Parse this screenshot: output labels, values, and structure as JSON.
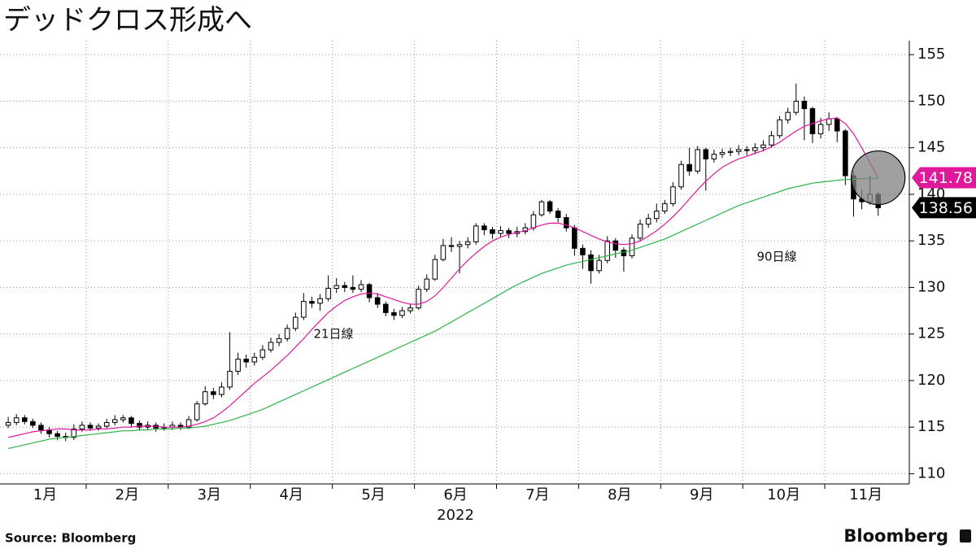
{
  "chart_data": {
    "type": "candlestick",
    "title": "デッドクロス形成へ",
    "xlim": [
      -1,
      109
    ],
    "xticks": [
      {
        "value": 4.5,
        "label": "1月"
      },
      {
        "value": 14.5,
        "label": "2月"
      },
      {
        "value": 24.5,
        "label": "3月"
      },
      {
        "value": 34.5,
        "label": "4月"
      },
      {
        "value": 44.5,
        "label": "5月"
      },
      {
        "value": 54.5,
        "label": "6月"
      },
      {
        "value": 64.5,
        "label": "7月"
      },
      {
        "value": 74.5,
        "label": "8月"
      },
      {
        "value": 84.5,
        "label": "9月"
      },
      {
        "value": 94.5,
        "label": "10月"
      },
      {
        "value": 104.5,
        "label": "11月"
      }
    ],
    "x_label": "2022",
    "ylim": [
      108.9,
      156.5
    ],
    "yticks": [
      110,
      115,
      120,
      125,
      130,
      135,
      140,
      145,
      150,
      155
    ],
    "grid": true,
    "up_color": "#ffffff",
    "down_color": "#000000",
    "open": [
      115.2,
      115.5,
      116.0,
      115.6,
      115.2,
      114.7,
      114.3,
      114.0,
      113.9,
      114.8,
      115.2,
      114.9,
      115.1,
      115.5,
      115.8,
      116.0,
      115.4,
      115.0,
      115.2,
      114.9,
      115.0,
      115.2,
      115.0,
      115.8,
      117.5,
      118.8,
      118.5,
      119.3,
      121.0,
      122.3,
      122.0,
      122.5,
      123.3,
      124.1,
      124.5,
      125.6,
      126.8,
      128.5,
      128.3,
      128.8,
      129.9,
      130.2,
      130.0,
      129.8,
      130.3,
      128.9,
      128.2,
      127.3,
      127.0,
      127.5,
      127.8,
      129.8,
      130.9,
      133.0,
      134.5,
      134.4,
      134.6,
      134.9,
      136.6,
      136.2,
      135.8,
      136.1,
      135.8,
      136.0,
      136.4,
      137.8,
      139.2,
      138.2,
      137.5,
      136.4,
      134.2,
      133.5,
      131.8,
      132.9,
      135.0,
      134.0,
      133.4,
      135.3,
      136.8,
      137.4,
      138.2,
      139.0,
      140.8,
      143.2,
      142.5,
      144.8,
      143.8,
      144.3,
      144.5,
      144.6,
      144.8,
      144.7,
      145.0,
      145.3,
      146.3,
      148.0,
      148.8,
      150.0,
      149.2,
      146.5,
      147.5,
      148.1,
      146.8,
      142.0,
      139.5,
      139.2,
      140.0
    ],
    "high": [
      116.1,
      116.4,
      116.3,
      115.9,
      115.5,
      115.0,
      114.6,
      114.4,
      115.3,
      115.6,
      115.5,
      115.4,
      115.9,
      116.3,
      116.3,
      116.2,
      115.7,
      115.6,
      115.5,
      115.4,
      115.6,
      115.5,
      116.2,
      117.8,
      119.4,
      119.2,
      119.8,
      125.2,
      123.0,
      122.8,
      123.0,
      123.8,
      124.6,
      125.0,
      126.0,
      127.3,
      129.4,
      129.0,
      129.3,
      131.3,
      131.0,
      130.6,
      131.3,
      130.8,
      130.5,
      129.4,
      128.5,
      127.7,
      127.9,
      128.2,
      130.2,
      131.4,
      133.5,
      135.2,
      135.4,
      135.0,
      135.4,
      136.9,
      136.9,
      136.5,
      136.6,
      136.4,
      136.5,
      136.9,
      138.2,
      139.4,
      139.4,
      138.5,
      137.9,
      136.7,
      134.6,
      134.0,
      133.5,
      135.5,
      135.3,
      134.3,
      135.7,
      137.3,
      137.9,
      139.0,
      139.4,
      141.3,
      143.6,
      145.0,
      145.2,
      145.0,
      144.8,
      144.9,
      145.0,
      145.3,
      145.2,
      145.5,
      145.8,
      146.8,
      148.4,
      149.3,
      151.9,
      150.5,
      149.4,
      148.2,
      148.8,
      148.3,
      147.0,
      142.5,
      140.5,
      142.0,
      140.3
    ],
    "low": [
      114.9,
      115.2,
      115.3,
      114.9,
      114.3,
      113.9,
      113.6,
      113.5,
      113.6,
      114.5,
      114.6,
      114.6,
      114.9,
      115.2,
      115.5,
      115.0,
      114.6,
      114.7,
      114.5,
      114.6,
      114.7,
      114.7,
      114.8,
      115.6,
      117.3,
      118.0,
      118.2,
      119.0,
      120.6,
      121.4,
      121.6,
      122.2,
      123.0,
      123.7,
      124.2,
      125.3,
      126.5,
      127.8,
      127.5,
      128.5,
      129.4,
      129.5,
      129.4,
      129.5,
      128.4,
      127.8,
      126.9,
      126.5,
      126.7,
      127.2,
      127.6,
      129.5,
      130.7,
      132.8,
      133.8,
      131.5,
      134.2,
      134.6,
      135.6,
      135.2,
      135.4,
      135.3,
      135.4,
      135.7,
      136.1,
      137.6,
      137.9,
      137.0,
      136.0,
      133.4,
      132.0,
      130.4,
      131.5,
      132.6,
      133.2,
      131.7,
      133.1,
      135.0,
      136.4,
      137.0,
      137.9,
      138.7,
      140.5,
      142.0,
      142.2,
      140.4,
      143.4,
      143.9,
      144.1,
      144.2,
      144.2,
      144.3,
      144.6,
      145.0,
      146.0,
      147.6,
      148.5,
      145.8,
      145.5,
      146.0,
      146.8,
      145.6,
      141.0,
      137.6,
      138.4,
      138.9,
      137.7
    ],
    "close": [
      115.5,
      116.0,
      115.6,
      115.2,
      114.7,
      114.3,
      114.0,
      113.9,
      114.8,
      115.2,
      114.9,
      115.1,
      115.5,
      115.8,
      116.0,
      115.4,
      115.0,
      115.2,
      114.9,
      115.0,
      115.2,
      115.0,
      115.8,
      117.5,
      118.8,
      118.5,
      119.3,
      121.0,
      122.3,
      122.0,
      122.5,
      123.3,
      124.1,
      124.5,
      125.6,
      126.8,
      128.5,
      128.3,
      128.8,
      129.9,
      130.2,
      130.0,
      129.8,
      130.3,
      128.9,
      128.2,
      127.3,
      127.0,
      127.5,
      127.8,
      129.8,
      130.9,
      133.0,
      134.5,
      134.4,
      134.6,
      134.9,
      136.6,
      136.2,
      135.8,
      136.1,
      135.8,
      136.0,
      136.4,
      137.8,
      139.2,
      138.2,
      137.5,
      136.4,
      134.2,
      133.5,
      131.8,
      132.9,
      135.0,
      134.0,
      133.4,
      135.3,
      136.8,
      137.4,
      138.2,
      139.0,
      140.8,
      143.2,
      142.5,
      144.8,
      143.8,
      144.3,
      144.5,
      144.6,
      144.8,
      144.7,
      145.0,
      145.3,
      146.3,
      148.0,
      148.8,
      150.0,
      149.2,
      146.5,
      147.5,
      148.1,
      146.8,
      142.0,
      139.5,
      139.2,
      140.0,
      138.56
    ],
    "series": [
      {
        "name": "21日線",
        "color": "#e0189a",
        "values": [
          113.9,
          114.1,
          114.3,
          114.5,
          114.6,
          114.7,
          114.8,
          114.8,
          114.7,
          114.7,
          114.7,
          114.8,
          114.8,
          114.9,
          115.0,
          115.0,
          115.1,
          115.1,
          115.1,
          115.0,
          115.0,
          115.0,
          115.1,
          115.3,
          115.6,
          116.0,
          116.6,
          117.3,
          118.1,
          118.9,
          119.7,
          120.4,
          121.1,
          121.9,
          122.7,
          123.6,
          124.5,
          125.5,
          126.4,
          127.3,
          128.0,
          128.6,
          129.0,
          129.3,
          129.4,
          129.3,
          129.0,
          128.7,
          128.4,
          128.2,
          128.2,
          128.5,
          129.1,
          130.0,
          131.0,
          132.0,
          132.9,
          133.7,
          134.4,
          135.0,
          135.4,
          135.7,
          135.9,
          136.1,
          136.4,
          136.7,
          136.9,
          136.9,
          136.7,
          136.4,
          136.0,
          135.6,
          135.2,
          134.9,
          134.7,
          134.6,
          134.7,
          135.0,
          135.5,
          136.1,
          136.8,
          137.6,
          138.5,
          139.5,
          140.5,
          141.4,
          142.2,
          142.9,
          143.4,
          143.8,
          144.1,
          144.4,
          144.7,
          145.1,
          145.6,
          146.2,
          146.8,
          147.3,
          147.6,
          147.9,
          148.1,
          148.2,
          147.6,
          146.5,
          145.0,
          143.4,
          141.78
        ]
      },
      {
        "name": "90日線",
        "color": "#2db34a",
        "values": [
          112.7,
          112.9,
          113.1,
          113.3,
          113.5,
          113.7,
          113.8,
          113.9,
          114.0,
          114.1,
          114.2,
          114.3,
          114.4,
          114.5,
          114.6,
          114.6,
          114.7,
          114.7,
          114.8,
          114.8,
          114.8,
          114.9,
          114.9,
          115.0,
          115.1,
          115.3,
          115.5,
          115.7,
          116.0,
          116.3,
          116.6,
          116.9,
          117.3,
          117.7,
          118.1,
          118.5,
          118.9,
          119.3,
          119.7,
          120.1,
          120.5,
          120.9,
          121.3,
          121.7,
          122.1,
          122.5,
          122.9,
          123.3,
          123.7,
          124.1,
          124.5,
          124.9,
          125.3,
          125.8,
          126.3,
          126.8,
          127.3,
          127.8,
          128.3,
          128.8,
          129.3,
          129.8,
          130.3,
          130.7,
          131.1,
          131.5,
          131.8,
          132.1,
          132.4,
          132.6,
          132.8,
          133.0,
          133.2,
          133.4,
          133.6,
          133.8,
          134.0,
          134.3,
          134.6,
          134.9,
          135.2,
          135.6,
          136.0,
          136.4,
          136.8,
          137.2,
          137.6,
          138.0,
          138.4,
          138.8,
          139.1,
          139.4,
          139.7,
          140.0,
          140.3,
          140.6,
          140.8,
          141.0,
          141.2,
          141.3,
          141.4,
          141.5,
          141.6,
          141.6,
          141.7,
          141.7,
          141.7
        ]
      }
    ]
  },
  "footer": {
    "source": "Source:  Bloomberg",
    "brand": "Bloomberg"
  }
}
